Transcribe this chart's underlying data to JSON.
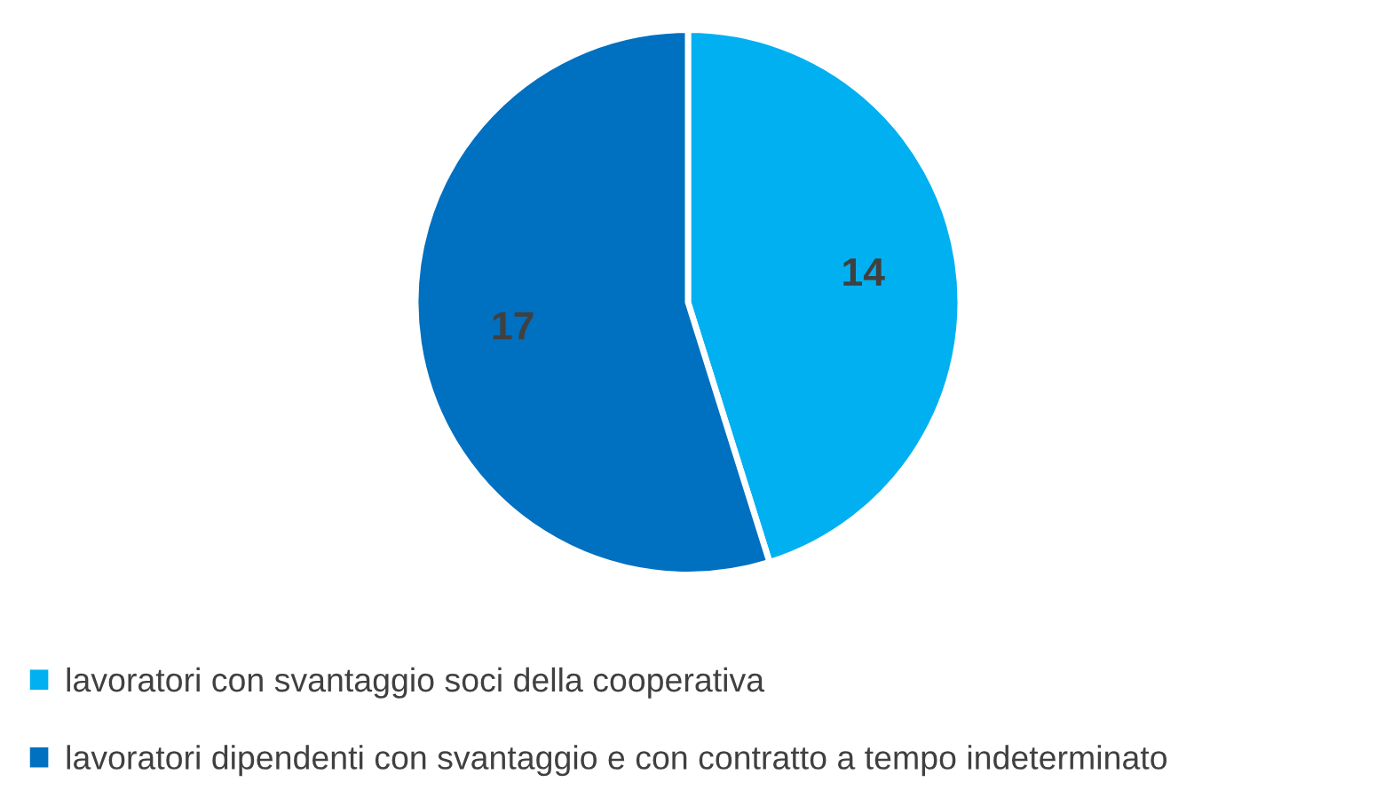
{
  "chart_data": {
    "type": "pie",
    "categories": [
      "lavoratori con svantaggio soci della cooperativa",
      "lavoratori dipendenti con svantaggio e con contratto a tempo indeterminato"
    ],
    "values": [
      14,
      17
    ],
    "colors": [
      "#00b0f0",
      "#0070c0"
    ],
    "data_labels": true,
    "legend": "bottom"
  }
}
